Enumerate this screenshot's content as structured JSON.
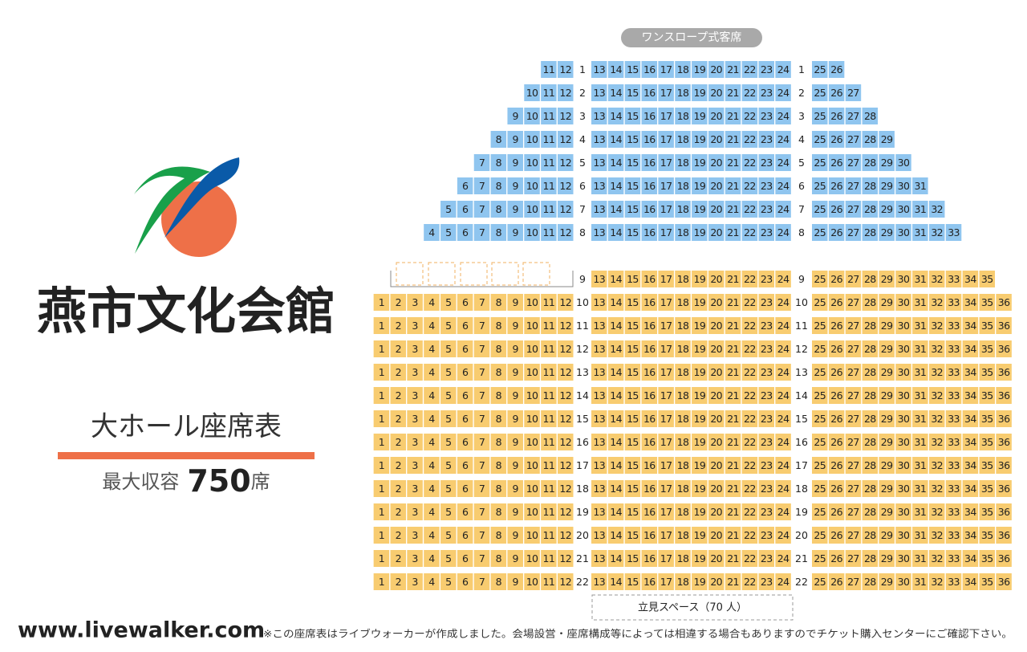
{
  "hall_name": "燕市文化会館",
  "subtitle": "大ホール座席表",
  "capacity_label": "最大収容",
  "capacity": 750,
  "capacity_unit": "席",
  "balcony_label": "ワンスロープ式客席",
  "standing_label": "立見スペース（70 人）",
  "site": "www.livewalker.com",
  "note": "※この座席表はライブウォーカーが作成しました。会場設営・座席構成等によっては相違する場合もありますのでチケット購入センターにご確認下さい。",
  "sections": [
    {
      "color": "#8fc5ef",
      "rows": [
        {
          "label": 1,
          "left": [
            11,
            12
          ],
          "center": [
            13,
            14,
            15,
            16,
            17,
            18,
            19,
            20,
            21,
            22,
            23,
            24
          ],
          "right": [
            25,
            26
          ]
        },
        {
          "label": 2,
          "left": [
            10,
            11,
            12
          ],
          "center": [
            13,
            14,
            15,
            16,
            17,
            18,
            19,
            20,
            21,
            22,
            23,
            24
          ],
          "right": [
            25,
            26,
            27
          ]
        },
        {
          "label": 3,
          "left": [
            9,
            10,
            11,
            12
          ],
          "center": [
            13,
            14,
            15,
            16,
            17,
            18,
            19,
            20,
            21,
            22,
            23,
            24
          ],
          "right": [
            25,
            26,
            27,
            28
          ]
        },
        {
          "label": 4,
          "left": [
            8,
            9,
            10,
            11,
            12
          ],
          "center": [
            13,
            14,
            15,
            16,
            17,
            18,
            19,
            20,
            21,
            22,
            23,
            24
          ],
          "right": [
            25,
            26,
            27,
            28,
            29
          ]
        },
        {
          "label": 5,
          "left": [
            7,
            8,
            9,
            10,
            11,
            12
          ],
          "center": [
            13,
            14,
            15,
            16,
            17,
            18,
            19,
            20,
            21,
            22,
            23,
            24
          ],
          "right": [
            25,
            26,
            27,
            28,
            29,
            30
          ]
        },
        {
          "label": 6,
          "left": [
            6,
            7,
            8,
            9,
            10,
            11,
            12
          ],
          "center": [
            13,
            14,
            15,
            16,
            17,
            18,
            19,
            20,
            21,
            22,
            23,
            24
          ],
          "right": [
            25,
            26,
            27,
            28,
            29,
            30,
            31
          ]
        },
        {
          "label": 7,
          "left": [
            5,
            6,
            7,
            8,
            9,
            10,
            11,
            12
          ],
          "center": [
            13,
            14,
            15,
            16,
            17,
            18,
            19,
            20,
            21,
            22,
            23,
            24
          ],
          "right": [
            25,
            26,
            27,
            28,
            29,
            30,
            31,
            32
          ]
        },
        {
          "label": 8,
          "left": [
            4,
            5,
            6,
            7,
            8,
            9,
            10,
            11,
            12
          ],
          "center": [
            13,
            14,
            15,
            16,
            17,
            18,
            19,
            20,
            21,
            22,
            23,
            24
          ],
          "right": [
            25,
            26,
            27,
            28,
            29,
            30,
            31,
            32,
            33
          ]
        }
      ]
    },
    {
      "color": "#f8cc70",
      "rows": [
        {
          "label": 9,
          "left": [],
          "center": [
            13,
            14,
            15,
            16,
            17,
            18,
            19,
            20,
            21,
            22,
            23,
            24
          ],
          "right": [
            25,
            26,
            27,
            28,
            29,
            30,
            31,
            32,
            33,
            34,
            35
          ]
        },
        {
          "label": 10,
          "left": [
            1,
            2,
            3,
            4,
            5,
            6,
            7,
            8,
            9,
            10,
            11,
            12
          ],
          "center": [
            13,
            14,
            15,
            16,
            17,
            18,
            19,
            20,
            21,
            22,
            23,
            24
          ],
          "right": [
            25,
            26,
            27,
            28,
            29,
            30,
            31,
            32,
            33,
            34,
            35,
            36
          ]
        },
        {
          "label": 11,
          "left": [
            1,
            2,
            3,
            4,
            5,
            6,
            7,
            8,
            9,
            10,
            11,
            12
          ],
          "center": [
            13,
            14,
            15,
            16,
            17,
            18,
            19,
            20,
            21,
            22,
            23,
            24
          ],
          "right": [
            25,
            26,
            27,
            28,
            29,
            30,
            31,
            32,
            33,
            34,
            35,
            36
          ]
        },
        {
          "label": 12,
          "left": [
            1,
            2,
            3,
            4,
            5,
            6,
            7,
            8,
            9,
            10,
            11,
            12
          ],
          "center": [
            13,
            14,
            15,
            16,
            17,
            18,
            19,
            20,
            21,
            22,
            23,
            24
          ],
          "right": [
            25,
            26,
            27,
            28,
            29,
            30,
            31,
            32,
            33,
            34,
            35,
            36
          ]
        },
        {
          "label": 13,
          "left": [
            1,
            2,
            3,
            4,
            5,
            6,
            7,
            8,
            9,
            10,
            11,
            12
          ],
          "center": [
            13,
            14,
            15,
            16,
            17,
            18,
            19,
            20,
            21,
            22,
            23,
            24
          ],
          "right": [
            25,
            26,
            27,
            28,
            29,
            30,
            31,
            32,
            33,
            34,
            35,
            36
          ]
        },
        {
          "label": 14,
          "left": [
            1,
            2,
            3,
            4,
            5,
            6,
            7,
            8,
            9,
            10,
            11,
            12
          ],
          "center": [
            13,
            14,
            15,
            16,
            17,
            18,
            19,
            20,
            21,
            22,
            23,
            24
          ],
          "right": [
            25,
            26,
            27,
            28,
            29,
            30,
            31,
            32,
            33,
            34,
            35,
            36
          ]
        },
        {
          "label": 15,
          "left": [
            1,
            2,
            3,
            4,
            5,
            6,
            7,
            8,
            9,
            10,
            11,
            12
          ],
          "center": [
            13,
            14,
            15,
            16,
            17,
            18,
            19,
            20,
            21,
            22,
            23,
            24
          ],
          "right": [
            25,
            26,
            27,
            28,
            29,
            30,
            31,
            32,
            33,
            34,
            35,
            36
          ]
        },
        {
          "label": 16,
          "left": [
            1,
            2,
            3,
            4,
            5,
            6,
            7,
            8,
            9,
            10,
            11,
            12
          ],
          "center": [
            13,
            14,
            15,
            16,
            17,
            18,
            19,
            20,
            21,
            22,
            23,
            24
          ],
          "right": [
            25,
            26,
            27,
            28,
            29,
            30,
            31,
            32,
            33,
            34,
            35,
            36
          ]
        },
        {
          "label": 17,
          "left": [
            1,
            2,
            3,
            4,
            5,
            6,
            7,
            8,
            9,
            10,
            11,
            12
          ],
          "center": [
            13,
            14,
            15,
            16,
            17,
            18,
            19,
            20,
            21,
            22,
            23,
            24
          ],
          "right": [
            25,
            26,
            27,
            28,
            29,
            30,
            31,
            32,
            33,
            34,
            35,
            36
          ]
        },
        {
          "label": 18,
          "left": [
            1,
            2,
            3,
            4,
            5,
            6,
            7,
            8,
            9,
            10,
            11,
            12
          ],
          "center": [
            13,
            14,
            15,
            16,
            17,
            18,
            19,
            20,
            21,
            22,
            23,
            24
          ],
          "right": [
            25,
            26,
            27,
            28,
            29,
            30,
            31,
            32,
            33,
            34,
            35,
            36
          ]
        },
        {
          "label": 19,
          "left": [
            1,
            2,
            3,
            4,
            5,
            6,
            7,
            8,
            9,
            10,
            11,
            12
          ],
          "center": [
            13,
            14,
            15,
            16,
            17,
            18,
            19,
            20,
            21,
            22,
            23,
            24
          ],
          "right": [
            25,
            26,
            27,
            28,
            29,
            30,
            31,
            32,
            33,
            34,
            35,
            36
          ]
        },
        {
          "label": 20,
          "left": [
            1,
            2,
            3,
            4,
            5,
            6,
            7,
            8,
            9,
            10,
            11,
            12
          ],
          "center": [
            13,
            14,
            15,
            16,
            17,
            18,
            19,
            20,
            21,
            22,
            23,
            24
          ],
          "right": [
            25,
            26,
            27,
            28,
            29,
            30,
            31,
            32,
            33,
            34,
            35,
            36
          ]
        },
        {
          "label": 21,
          "left": [
            1,
            2,
            3,
            4,
            5,
            6,
            7,
            8,
            9,
            10,
            11,
            12
          ],
          "center": [
            13,
            14,
            15,
            16,
            17,
            18,
            19,
            20,
            21,
            22,
            23,
            24
          ],
          "right": [
            25,
            26,
            27,
            28,
            29,
            30,
            31,
            32,
            33,
            34,
            35,
            36
          ]
        },
        {
          "label": 22,
          "left": [
            1,
            2,
            3,
            4,
            5,
            6,
            7,
            8,
            9,
            10,
            11,
            12
          ],
          "center": [
            13,
            14,
            15,
            16,
            17,
            18,
            19,
            20,
            21,
            22,
            23,
            24
          ],
          "right": [
            25,
            26,
            27,
            28,
            29,
            30,
            31,
            32,
            33,
            34,
            35,
            36
          ]
        }
      ]
    }
  ]
}
